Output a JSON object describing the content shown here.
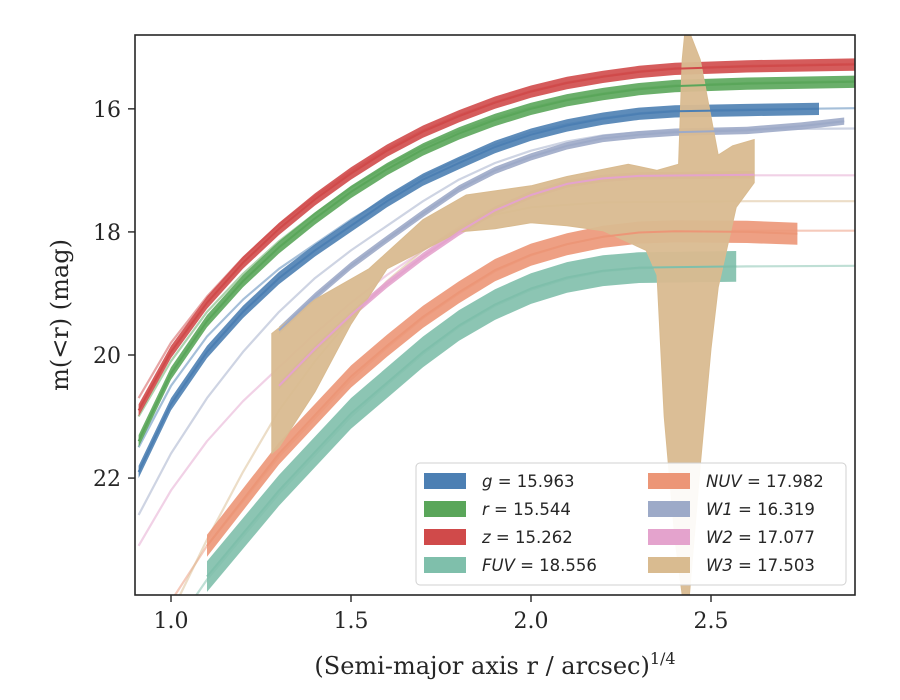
{
  "chart_data": {
    "type": "line",
    "xlabel": "(Semi-major axis r / arcsec)",
    "xlabel_exponent": "1/4",
    "ylabel": "m(<r) (mag)",
    "xlim": [
      0.9,
      2.9
    ],
    "ylim": [
      23.9,
      14.8
    ],
    "y_inverted": true,
    "x_ticks": [
      1.0,
      1.5,
      2.0,
      2.5
    ],
    "x_tick_labels": [
      "1.0",
      "1.5",
      "2.0",
      "2.5"
    ],
    "y_ticks": [
      16,
      18,
      20,
      22
    ],
    "y_tick_labels": [
      "16",
      "18",
      "20",
      "22"
    ],
    "grid": false,
    "legend_position": "lower-right",
    "legend_columns": 2,
    "series": [
      {
        "key": "g",
        "legend_var": "g",
        "legend_value": "15.963",
        "color": "#4c7fb3",
        "data": [
          [
            0.91,
            21.9
          ],
          [
            1.0,
            20.8
          ],
          [
            1.1,
            19.95
          ],
          [
            1.2,
            19.3
          ],
          [
            1.3,
            18.75
          ],
          [
            1.4,
            18.3
          ],
          [
            1.5,
            17.9
          ],
          [
            1.6,
            17.5
          ],
          [
            1.7,
            17.15
          ],
          [
            1.8,
            16.88
          ],
          [
            1.9,
            16.62
          ],
          [
            2.0,
            16.42
          ],
          [
            2.1,
            16.27
          ],
          [
            2.2,
            16.16
          ],
          [
            2.3,
            16.08
          ],
          [
            2.4,
            16.04
          ],
          [
            2.6,
            16.02
          ],
          [
            2.8,
            16.0
          ]
        ],
        "band": 0.1,
        "ghost": [
          [
            0.91,
            21.5
          ],
          [
            1.0,
            20.5
          ],
          [
            1.1,
            19.7
          ],
          [
            1.2,
            19.1
          ],
          [
            1.3,
            18.6
          ],
          [
            1.4,
            18.2
          ],
          [
            1.5,
            17.8
          ],
          [
            1.6,
            17.45
          ],
          [
            1.7,
            17.1
          ],
          [
            1.8,
            16.82
          ],
          [
            1.9,
            16.58
          ],
          [
            2.0,
            16.38
          ],
          [
            2.1,
            16.25
          ],
          [
            2.2,
            16.15
          ],
          [
            2.3,
            16.07
          ],
          [
            2.4,
            16.03
          ],
          [
            2.6,
            16.01
          ],
          [
            2.9,
            15.99
          ]
        ]
      },
      {
        "key": "r",
        "legend_var": "r",
        "legend_value": "15.544",
        "color": "#5aa65a",
        "data": [
          [
            0.91,
            21.4
          ],
          [
            1.0,
            20.3
          ],
          [
            1.1,
            19.45
          ],
          [
            1.2,
            18.8
          ],
          [
            1.3,
            18.25
          ],
          [
            1.4,
            17.78
          ],
          [
            1.5,
            17.35
          ],
          [
            1.6,
            16.98
          ],
          [
            1.7,
            16.66
          ],
          [
            1.8,
            16.4
          ],
          [
            1.9,
            16.18
          ],
          [
            2.0,
            16.0
          ],
          [
            2.1,
            15.86
          ],
          [
            2.2,
            15.76
          ],
          [
            2.3,
            15.68
          ],
          [
            2.4,
            15.63
          ],
          [
            2.6,
            15.59
          ],
          [
            2.9,
            15.56
          ]
        ],
        "band": 0.1,
        "ghost": [
          [
            0.91,
            21.0
          ],
          [
            1.0,
            20.1
          ],
          [
            1.1,
            19.3
          ],
          [
            1.2,
            18.68
          ],
          [
            1.3,
            18.15
          ],
          [
            1.4,
            17.7
          ],
          [
            1.5,
            17.28
          ],
          [
            1.6,
            16.92
          ],
          [
            1.7,
            16.61
          ],
          [
            1.8,
            16.36
          ],
          [
            1.9,
            16.15
          ],
          [
            2.0,
            15.98
          ],
          [
            2.1,
            15.85
          ],
          [
            2.2,
            15.75
          ],
          [
            2.3,
            15.67
          ],
          [
            2.4,
            15.62
          ],
          [
            2.6,
            15.58
          ],
          [
            2.9,
            15.55
          ]
        ]
      },
      {
        "key": "z",
        "legend_var": "z",
        "legend_value": "15.262",
        "color": "#d04a4a",
        "data": [
          [
            0.91,
            20.9
          ],
          [
            1.0,
            19.95
          ],
          [
            1.1,
            19.15
          ],
          [
            1.2,
            18.5
          ],
          [
            1.3,
            17.95
          ],
          [
            1.4,
            17.47
          ],
          [
            1.5,
            17.05
          ],
          [
            1.6,
            16.68
          ],
          [
            1.7,
            16.37
          ],
          [
            1.8,
            16.12
          ],
          [
            1.9,
            15.9
          ],
          [
            2.0,
            15.72
          ],
          [
            2.1,
            15.58
          ],
          [
            2.2,
            15.48
          ],
          [
            2.3,
            15.4
          ],
          [
            2.4,
            15.35
          ],
          [
            2.6,
            15.31
          ],
          [
            2.9,
            15.28
          ]
        ],
        "band": 0.1,
        "ghost": [
          [
            0.91,
            20.7
          ],
          [
            1.0,
            19.8
          ],
          [
            1.1,
            19.05
          ],
          [
            1.2,
            18.42
          ],
          [
            1.3,
            17.88
          ],
          [
            1.4,
            17.42
          ],
          [
            1.5,
            17.01
          ],
          [
            1.6,
            16.65
          ],
          [
            1.7,
            16.35
          ],
          [
            1.8,
            16.1
          ],
          [
            1.9,
            15.89
          ],
          [
            2.0,
            15.71
          ],
          [
            2.1,
            15.57
          ],
          [
            2.2,
            15.47
          ],
          [
            2.3,
            15.39
          ],
          [
            2.4,
            15.34
          ],
          [
            2.6,
            15.3
          ],
          [
            2.9,
            15.27
          ]
        ]
      },
      {
        "key": "FUV",
        "legend_var": "FUV",
        "legend_value": "18.556",
        "color": "#7fbfab",
        "data": [
          [
            1.1,
            23.6
          ],
          [
            1.3,
            22.2
          ],
          [
            1.5,
            20.95
          ],
          [
            1.6,
            20.45
          ],
          [
            1.7,
            19.95
          ],
          [
            1.8,
            19.52
          ],
          [
            1.9,
            19.18
          ],
          [
            2.0,
            18.92
          ],
          [
            2.1,
            18.74
          ],
          [
            2.2,
            18.63
          ],
          [
            2.3,
            18.58
          ],
          [
            2.57,
            18.56
          ]
        ],
        "band": 0.25,
        "ghost": [
          [
            0.91,
            25.5
          ],
          [
            1.0,
            24.5
          ],
          [
            1.1,
            23.65
          ],
          [
            1.3,
            22.25
          ],
          [
            1.5,
            21.0
          ],
          [
            1.6,
            20.48
          ],
          [
            1.7,
            19.98
          ],
          [
            1.8,
            19.54
          ],
          [
            1.9,
            19.2
          ],
          [
            2.0,
            18.94
          ],
          [
            2.1,
            18.76
          ],
          [
            2.2,
            18.64
          ],
          [
            2.3,
            18.59
          ],
          [
            2.6,
            18.56
          ],
          [
            2.9,
            18.55
          ]
        ]
      },
      {
        "key": "NUV",
        "legend_var": "NUV",
        "legend_value": "17.982",
        "color": "#ec9677",
        "data": [
          [
            1.1,
            23.1
          ],
          [
            1.3,
            21.6
          ],
          [
            1.5,
            20.35
          ],
          [
            1.6,
            19.85
          ],
          [
            1.7,
            19.38
          ],
          [
            1.8,
            18.98
          ],
          [
            1.9,
            18.62
          ],
          [
            2.0,
            18.37
          ],
          [
            2.1,
            18.2
          ],
          [
            2.2,
            18.08
          ],
          [
            2.3,
            18.01
          ],
          [
            2.4,
            17.99
          ],
          [
            2.6,
            18.0
          ],
          [
            2.74,
            18.03
          ]
        ],
        "band": 0.18,
        "ghost": [
          [
            0.91,
            24.8
          ],
          [
            1.0,
            24.0
          ],
          [
            1.1,
            23.1
          ],
          [
            1.3,
            21.65
          ],
          [
            1.5,
            20.4
          ],
          [
            1.6,
            19.88
          ],
          [
            1.7,
            19.4
          ],
          [
            1.8,
            19.0
          ],
          [
            1.9,
            18.64
          ],
          [
            2.0,
            18.38
          ],
          [
            2.1,
            18.2
          ],
          [
            2.2,
            18.08
          ],
          [
            2.3,
            18.01
          ],
          [
            2.6,
            17.98
          ],
          [
            2.9,
            17.98
          ]
        ]
      },
      {
        "key": "W1",
        "legend_var": "W1",
        "legend_value": "16.319",
        "color": "#9daac8",
        "data": [
          [
            1.3,
            19.6
          ],
          [
            1.4,
            19.05
          ],
          [
            1.5,
            18.55
          ],
          [
            1.6,
            18.12
          ],
          [
            1.7,
            17.7
          ],
          [
            1.8,
            17.3
          ],
          [
            1.9,
            17.0
          ],
          [
            2.0,
            16.78
          ],
          [
            2.1,
            16.6
          ],
          [
            2.2,
            16.48
          ],
          [
            2.3,
            16.42
          ],
          [
            2.4,
            16.38
          ],
          [
            2.6,
            16.35
          ],
          [
            2.75,
            16.28
          ],
          [
            2.87,
            16.2
          ]
        ],
        "band": 0.06,
        "ghost": [
          [
            0.91,
            22.6
          ],
          [
            1.0,
            21.6
          ],
          [
            1.1,
            20.7
          ],
          [
            1.2,
            19.95
          ],
          [
            1.3,
            19.3
          ],
          [
            1.4,
            18.75
          ],
          [
            1.5,
            18.3
          ],
          [
            1.6,
            17.9
          ],
          [
            1.7,
            17.5
          ],
          [
            1.8,
            17.15
          ],
          [
            1.9,
            16.88
          ],
          [
            2.0,
            16.68
          ],
          [
            2.1,
            16.53
          ],
          [
            2.2,
            16.43
          ],
          [
            2.3,
            16.38
          ],
          [
            2.6,
            16.33
          ],
          [
            2.9,
            16.32
          ]
        ]
      },
      {
        "key": "W2",
        "legend_var": "W2",
        "legend_value": "17.077",
        "color": "#e4a3cd",
        "data": [
          [
            1.3,
            20.5
          ],
          [
            1.4,
            19.9
          ],
          [
            1.5,
            19.35
          ],
          [
            1.6,
            18.85
          ],
          [
            1.7,
            18.4
          ],
          [
            1.8,
            18.0
          ],
          [
            1.9,
            17.65
          ],
          [
            2.0,
            17.4
          ],
          [
            2.1,
            17.22
          ],
          [
            2.2,
            17.13
          ],
          [
            2.3,
            17.09
          ],
          [
            2.62,
            17.07
          ]
        ],
        "band": 0.06,
        "ghost": [
          [
            0.91,
            23.1
          ],
          [
            1.0,
            22.2
          ],
          [
            1.1,
            21.4
          ],
          [
            1.2,
            20.75
          ],
          [
            1.3,
            20.2
          ],
          [
            1.4,
            19.65
          ],
          [
            1.5,
            19.15
          ],
          [
            1.6,
            18.7
          ],
          [
            1.7,
            18.3
          ],
          [
            1.8,
            17.92
          ],
          [
            1.9,
            17.6
          ],
          [
            2.0,
            17.35
          ],
          [
            2.1,
            17.2
          ],
          [
            2.2,
            17.12
          ],
          [
            2.3,
            17.09
          ],
          [
            2.6,
            17.08
          ],
          [
            2.9,
            17.08
          ]
        ]
      },
      {
        "key": "W3",
        "legend_var": "W3",
        "legend_value": "17.503",
        "color": "#d9bb90",
        "band_upper": [
          [
            1.28,
            19.65
          ],
          [
            1.4,
            19.1
          ],
          [
            1.55,
            18.6
          ],
          [
            1.7,
            17.8
          ],
          [
            1.82,
            17.4
          ],
          [
            2.0,
            17.25
          ],
          [
            2.1,
            17.1
          ],
          [
            2.27,
            16.9
          ],
          [
            2.35,
            17.0
          ],
          [
            2.41,
            16.9
          ],
          [
            2.42,
            15.2
          ],
          [
            2.43,
            14.6
          ],
          [
            2.47,
            15.2
          ],
          [
            2.52,
            16.75
          ],
          [
            2.56,
            16.6
          ],
          [
            2.62,
            16.5
          ]
        ],
        "band_lower": [
          [
            2.62,
            17.2
          ],
          [
            2.57,
            17.6
          ],
          [
            2.52,
            18.9
          ],
          [
            2.5,
            19.9
          ],
          [
            2.47,
            21.8
          ],
          [
            2.44,
            23.9
          ],
          [
            2.42,
            23.9
          ],
          [
            2.4,
            23.0
          ],
          [
            2.37,
            21.0
          ],
          [
            2.35,
            18.7
          ],
          [
            2.32,
            18.3
          ],
          [
            2.2,
            17.98
          ],
          [
            2.1,
            17.9
          ],
          [
            2.0,
            17.85
          ],
          [
            1.9,
            17.95
          ],
          [
            1.8,
            18.0
          ],
          [
            1.7,
            18.3
          ],
          [
            1.6,
            18.6
          ],
          [
            1.5,
            19.5
          ],
          [
            1.4,
            20.6
          ],
          [
            1.3,
            21.5
          ],
          [
            1.28,
            21.6
          ]
        ],
        "ghost": [
          [
            0.91,
            25.5
          ],
          [
            1.0,
            24.2
          ],
          [
            1.1,
            23.0
          ],
          [
            1.2,
            21.9
          ],
          [
            1.3,
            20.9
          ],
          [
            1.4,
            20.1
          ],
          [
            1.5,
            19.4
          ],
          [
            1.6,
            18.8
          ],
          [
            1.7,
            18.3
          ],
          [
            1.8,
            17.95
          ],
          [
            1.9,
            17.72
          ],
          [
            2.0,
            17.6
          ],
          [
            2.2,
            17.52
          ],
          [
            2.6,
            17.5
          ],
          [
            2.9,
            17.5
          ]
        ]
      }
    ]
  }
}
